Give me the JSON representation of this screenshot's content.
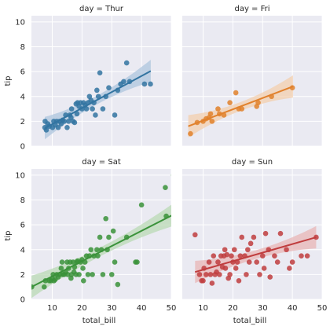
{
  "chart_data": {
    "type": "scatter",
    "style": {
      "panel_bg": "#eaeaf2",
      "grid_color": "#ffffff",
      "text_color": "#262626",
      "grid": true
    },
    "shared": {
      "xlabel": "total_bill",
      "ylabel": "tip",
      "xlim": [
        3,
        50
      ],
      "ylim": [
        0,
        10.5
      ],
      "xticks": [
        10,
        20,
        30,
        40,
        50
      ],
      "yticks": [
        0,
        2,
        4,
        6,
        8,
        10
      ],
      "xtick_labels": [
        "10",
        "20",
        "30",
        "40",
        "50"
      ],
      "ytick_labels": [
        "0",
        "2",
        "4",
        "6",
        "8",
        "10"
      ]
    },
    "facets": [
      {
        "title": "day = Thur",
        "color": "#3274a1",
        "ci_color": "#aec6dd",
        "regression": {
          "x": [
            7.5,
            43.1
          ],
          "y": [
            1.45,
            6.05
          ]
        },
        "points": [
          [
            7.5,
            1.5
          ],
          [
            7.6,
            2.0
          ],
          [
            8.0,
            1.3
          ],
          [
            8.5,
            1.8
          ],
          [
            9.0,
            1.6
          ],
          [
            10.1,
            1.5
          ],
          [
            10.5,
            2.0
          ],
          [
            11.0,
            1.7
          ],
          [
            11.5,
            2.0
          ],
          [
            12.0,
            1.5
          ],
          [
            12.5,
            2.0
          ],
          [
            13.0,
            1.8
          ],
          [
            13.5,
            2.1
          ],
          [
            14.0,
            2.0
          ],
          [
            14.5,
            2.5
          ],
          [
            15.0,
            1.5
          ],
          [
            15.5,
            2.0
          ],
          [
            15.9,
            2.5
          ],
          [
            16.3,
            2.3
          ],
          [
            16.5,
            3.0
          ],
          [
            17.0,
            2.0
          ],
          [
            17.5,
            1.9
          ],
          [
            18.0,
            3.4
          ],
          [
            18.3,
            2.6
          ],
          [
            18.5,
            3.5
          ],
          [
            19.0,
            3.2
          ],
          [
            19.5,
            3.5
          ],
          [
            20.0,
            3.0
          ],
          [
            20.5,
            3.5
          ],
          [
            21.0,
            3.3
          ],
          [
            21.5,
            3.0
          ],
          [
            22.0,
            3.5
          ],
          [
            22.5,
            4.0
          ],
          [
            23.0,
            3.7
          ],
          [
            23.5,
            3.0
          ],
          [
            24.0,
            3.5
          ],
          [
            24.5,
            2.5
          ],
          [
            25.0,
            4.5
          ],
          [
            25.5,
            4.0
          ],
          [
            26.0,
            5.9
          ],
          [
            27.0,
            3.0
          ],
          [
            28.0,
            4.0
          ],
          [
            29.0,
            4.7
          ],
          [
            31.0,
            2.5
          ],
          [
            32.0,
            4.5
          ],
          [
            33.0,
            5.0
          ],
          [
            34.0,
            5.2
          ],
          [
            35.0,
            6.7
          ],
          [
            36.0,
            5.2
          ],
          [
            41.0,
            5.0
          ],
          [
            43.0,
            5.0
          ]
        ]
      },
      {
        "title": "day = Fri",
        "color": "#e1812c",
        "ci_color": "#f3cfae",
        "regression": {
          "x": [
            5.0,
            40.2
          ],
          "y": [
            1.6,
            4.8
          ]
        },
        "points": [
          [
            5.75,
            1.0
          ],
          [
            8.0,
            1.9
          ],
          [
            10.0,
            2.0
          ],
          [
            11.0,
            2.2
          ],
          [
            12.0,
            2.3
          ],
          [
            12.5,
            2.6
          ],
          [
            13.0,
            2.0
          ],
          [
            15.0,
            3.0
          ],
          [
            15.5,
            2.6
          ],
          [
            17.0,
            2.5
          ],
          [
            19.0,
            3.5
          ],
          [
            21.0,
            4.3
          ],
          [
            22.0,
            3.0
          ],
          [
            23.0,
            3.0
          ],
          [
            28.0,
            3.2
          ],
          [
            28.5,
            3.5
          ],
          [
            33.0,
            4.0
          ],
          [
            40.0,
            4.7
          ]
        ]
      },
      {
        "title": "day = Sat",
        "color": "#3a923a",
        "ci_color": "#b9dab4",
        "regression": {
          "x": [
            3.0,
            50.5
          ],
          "y": [
            1.0,
            6.8
          ]
        },
        "points": [
          [
            3.1,
            1.0
          ],
          [
            7.3,
            1.0
          ],
          [
            7.7,
            1.5
          ],
          [
            9.0,
            1.5
          ],
          [
            9.5,
            1.5
          ],
          [
            10.0,
            1.7
          ],
          [
            10.3,
            2.0
          ],
          [
            10.6,
            1.5
          ],
          [
            11.0,
            1.6
          ],
          [
            11.5,
            2.0
          ],
          [
            12.0,
            1.8
          ],
          [
            12.5,
            2.0
          ],
          [
            13.0,
            2.5
          ],
          [
            13.3,
            3.0
          ],
          [
            13.5,
            2.0
          ],
          [
            14.0,
            2.0
          ],
          [
            14.5,
            2.2
          ],
          [
            15.0,
            3.0
          ],
          [
            15.2,
            2.0
          ],
          [
            15.5,
            2.5
          ],
          [
            16.0,
            3.0
          ],
          [
            16.3,
            1.7
          ],
          [
            16.5,
            2.0
          ],
          [
            17.0,
            3.0
          ],
          [
            17.3,
            2.2
          ],
          [
            17.5,
            2.6
          ],
          [
            18.0,
            2.0
          ],
          [
            18.3,
            3.0
          ],
          [
            18.5,
            3.1
          ],
          [
            19.0,
            2.0
          ],
          [
            19.5,
            3.0
          ],
          [
            20.0,
            3.2
          ],
          [
            20.3,
            2.5
          ],
          [
            20.5,
            1.5
          ],
          [
            21.0,
            3.0
          ],
          [
            21.5,
            3.5
          ],
          [
            22.0,
            2.0
          ],
          [
            22.5,
            3.5
          ],
          [
            23.0,
            4.0
          ],
          [
            23.5,
            2.0
          ],
          [
            24.0,
            3.5
          ],
          [
            25.0,
            4.0
          ],
          [
            25.3,
            3.5
          ],
          [
            26.0,
            5.0
          ],
          [
            26.5,
            4.0
          ],
          [
            27.0,
            2.0
          ],
          [
            28.0,
            6.5
          ],
          [
            28.5,
            4.0
          ],
          [
            29.0,
            5.0
          ],
          [
            30.0,
            2.0
          ],
          [
            30.5,
            5.5
          ],
          [
            31.0,
            3.0
          ],
          [
            32.0,
            1.2
          ],
          [
            35.0,
            5.0
          ],
          [
            38.0,
            3.0
          ],
          [
            38.5,
            3.0
          ],
          [
            40.0,
            7.6
          ],
          [
            48.0,
            9.0
          ],
          [
            48.3,
            6.7
          ],
          [
            50.8,
            10.0
          ]
        ]
      },
      {
        "title": "day = Sun",
        "color": "#c03d3e",
        "ci_color": "#e8b5b5",
        "regression": {
          "x": [
            7.3,
            48.0
          ],
          "y": [
            2.2,
            5.0
          ]
        },
        "points": [
          [
            7.3,
            5.2
          ],
          [
            8.8,
            2.0
          ],
          [
            9.5,
            1.5
          ],
          [
            10.0,
            1.5
          ],
          [
            10.3,
            2.5
          ],
          [
            11.0,
            2.0
          ],
          [
            12.0,
            3.0
          ],
          [
            12.5,
            2.0
          ],
          [
            13.0,
            1.3
          ],
          [
            13.5,
            3.5
          ],
          [
            14.0,
            2.0
          ],
          [
            14.5,
            2.2
          ],
          [
            15.0,
            3.0
          ],
          [
            15.5,
            2.0
          ],
          [
            16.0,
            3.5
          ],
          [
            16.5,
            2.6
          ],
          [
            17.0,
            3.5
          ],
          [
            17.3,
            4.0
          ],
          [
            17.5,
            2.5
          ],
          [
            18.0,
            3.6
          ],
          [
            18.5,
            1.7
          ],
          [
            19.0,
            2.0
          ],
          [
            19.5,
            3.5
          ],
          [
            20.0,
            3.0
          ],
          [
            20.5,
            4.0
          ],
          [
            21.0,
            2.5
          ],
          [
            21.5,
            3.0
          ],
          [
            22.0,
            1.5
          ],
          [
            22.5,
            3.5
          ],
          [
            23.0,
            5.0
          ],
          [
            24.0,
            3.5
          ],
          [
            24.5,
            2.0
          ],
          [
            25.0,
            4.0
          ],
          [
            25.5,
            3.0
          ],
          [
            26.0,
            4.5
          ],
          [
            27.0,
            5.0
          ],
          [
            28.0,
            3.0
          ],
          [
            29.0,
            2.0
          ],
          [
            30.0,
            3.5
          ],
          [
            30.5,
            2.5
          ],
          [
            31.0,
            5.3
          ],
          [
            32.0,
            4.0
          ],
          [
            32.5,
            1.8
          ],
          [
            34.0,
            3.5
          ],
          [
            35.0,
            3.0
          ],
          [
            36.0,
            5.3
          ],
          [
            38.0,
            4.0
          ],
          [
            39.0,
            2.5
          ],
          [
            40.0,
            3.0
          ],
          [
            43.0,
            3.5
          ],
          [
            45.0,
            3.5
          ],
          [
            48.0,
            5.0
          ]
        ]
      }
    ]
  }
}
